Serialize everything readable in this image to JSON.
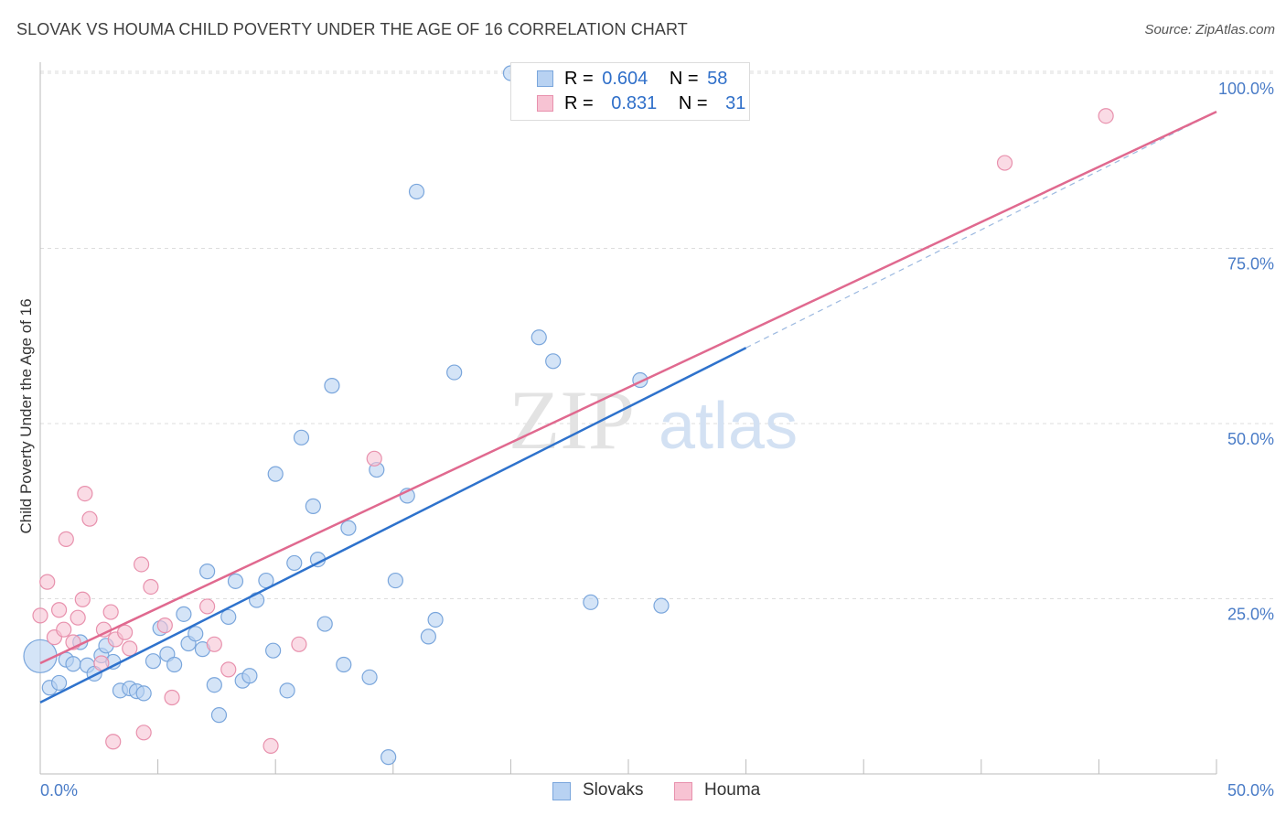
{
  "chart_data": {
    "type": "scatter",
    "title": "SLOVAK VS HOUMA CHILD POVERTY UNDER THE AGE OF 16 CORRELATION CHART",
    "source": "Source: ZipAtlas.com",
    "ylabel": "Child Poverty Under the Age of 16",
    "xlim": [
      0,
      50
    ],
    "ylim": [
      0,
      100
    ],
    "x_tick_labels": [
      "0.0%",
      "50.0%"
    ],
    "y_tick_values": [
      25,
      50,
      75,
      100
    ],
    "y_tick_labels": [
      "25.0%",
      "50.0%",
      "75.0%",
      "100.0%"
    ],
    "watermark": {
      "zip": "ZIP",
      "atlas": "atlas"
    },
    "legend": {
      "rows": [
        {
          "r_label": "R =",
          "r_value": "0.604",
          "n_label": "N =",
          "n_value": "58"
        },
        {
          "r_label": "R =",
          "r_value": "0.831",
          "n_label": "N =",
          "n_value": "31"
        }
      ]
    },
    "colors": {
      "slovaks_fill": "#b8d2f2",
      "slovaks_stroke": "#7aa6dc",
      "slovaks_line": "#2e72cc",
      "houma_fill": "#f7c3d3",
      "houma_stroke": "#e891ad",
      "houma_line": "#e0698f",
      "axis_text": "#4a7cc7"
    },
    "series": [
      {
        "name": "Slovaks",
        "trend": {
          "x0": 0,
          "y0": 10.2,
          "x1": 30,
          "y1": 60.8,
          "dash_to_x": 50,
          "dash_to_y": 94.5
        },
        "points": [
          [
            0.0,
            16.8
          ],
          [
            0.4,
            12.3
          ],
          [
            0.8,
            13.0
          ],
          [
            1.1,
            16.3
          ],
          [
            1.4,
            15.7
          ],
          [
            1.7,
            18.8
          ],
          [
            2.0,
            15.5
          ],
          [
            2.3,
            14.3
          ],
          [
            2.6,
            16.9
          ],
          [
            2.8,
            18.3
          ],
          [
            3.1,
            16.0
          ],
          [
            3.4,
            11.9
          ],
          [
            3.8,
            12.2
          ],
          [
            4.1,
            11.8
          ],
          [
            4.4,
            11.5
          ],
          [
            4.8,
            16.1
          ],
          [
            5.1,
            20.8
          ],
          [
            5.4,
            17.1
          ],
          [
            5.7,
            15.6
          ],
          [
            6.1,
            22.8
          ],
          [
            6.3,
            18.6
          ],
          [
            6.6,
            20.0
          ],
          [
            6.9,
            17.8
          ],
          [
            7.1,
            28.9
          ],
          [
            7.4,
            12.7
          ],
          [
            7.6,
            8.4
          ],
          [
            8.0,
            22.4
          ],
          [
            8.3,
            27.5
          ],
          [
            8.6,
            13.3
          ],
          [
            8.9,
            14.0
          ],
          [
            9.2,
            24.8
          ],
          [
            9.6,
            27.6
          ],
          [
            9.9,
            17.6
          ],
          [
            10.0,
            42.8
          ],
          [
            10.5,
            11.9
          ],
          [
            10.8,
            30.1
          ],
          [
            11.1,
            48.0
          ],
          [
            11.6,
            38.2
          ],
          [
            11.8,
            30.6
          ],
          [
            12.1,
            21.4
          ],
          [
            12.4,
            55.4
          ],
          [
            12.9,
            15.6
          ],
          [
            13.1,
            35.1
          ],
          [
            14.0,
            13.8
          ],
          [
            14.3,
            43.4
          ],
          [
            14.8,
            2.4
          ],
          [
            15.1,
            27.6
          ],
          [
            15.6,
            39.7
          ],
          [
            16.0,
            83.1
          ],
          [
            16.5,
            19.6
          ],
          [
            16.8,
            22.0
          ],
          [
            17.6,
            57.3
          ],
          [
            20.0,
            100.0
          ],
          [
            21.2,
            62.3
          ],
          [
            21.8,
            58.9
          ],
          [
            23.4,
            24.5
          ],
          [
            25.5,
            56.2
          ],
          [
            26.4,
            24.0
          ]
        ]
      },
      {
        "name": "Houma",
        "trend": {
          "x0": 0,
          "y0": 15.8,
          "x1": 50,
          "y1": 94.5
        },
        "points": [
          [
            0.0,
            22.6
          ],
          [
            0.3,
            27.4
          ],
          [
            0.6,
            19.5
          ],
          [
            0.8,
            23.4
          ],
          [
            1.0,
            20.6
          ],
          [
            1.1,
            33.5
          ],
          [
            1.4,
            18.8
          ],
          [
            1.6,
            22.3
          ],
          [
            1.8,
            24.9
          ],
          [
            1.9,
            40.0
          ],
          [
            2.1,
            36.4
          ],
          [
            2.6,
            15.8
          ],
          [
            2.7,
            20.6
          ],
          [
            3.0,
            23.1
          ],
          [
            3.1,
            4.6
          ],
          [
            3.2,
            19.2
          ],
          [
            3.6,
            20.2
          ],
          [
            3.8,
            17.9
          ],
          [
            4.3,
            29.9
          ],
          [
            4.4,
            5.9
          ],
          [
            4.7,
            26.7
          ],
          [
            5.3,
            21.2
          ],
          [
            5.6,
            10.9
          ],
          [
            7.1,
            23.9
          ],
          [
            7.4,
            18.5
          ],
          [
            8.0,
            14.9
          ],
          [
            9.8,
            4.0
          ],
          [
            11.0,
            18.5
          ],
          [
            14.2,
            45.0
          ],
          [
            41.0,
            87.2
          ],
          [
            45.3,
            93.9
          ]
        ]
      }
    ]
  }
}
